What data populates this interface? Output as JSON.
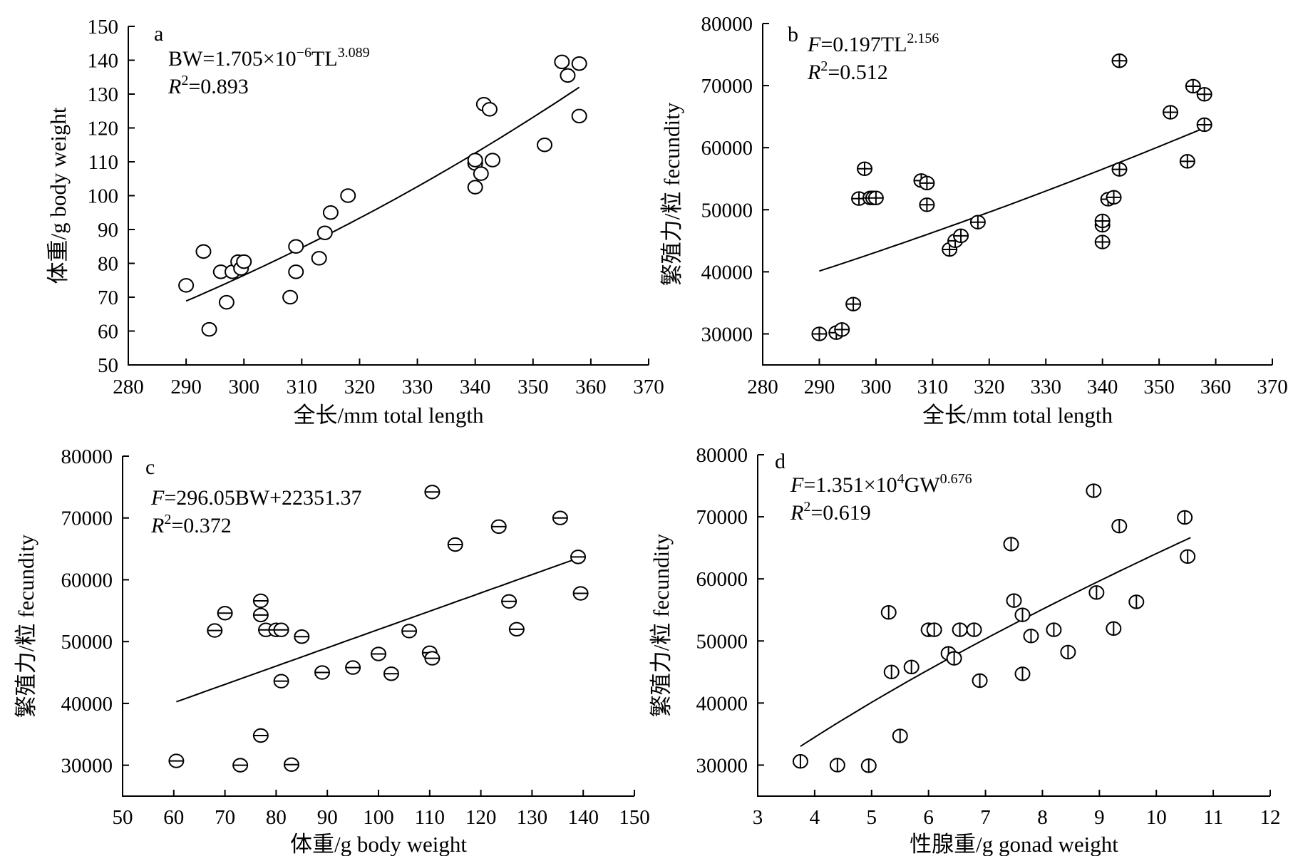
{
  "chart_data": [
    {
      "panel": "a",
      "type": "scatter",
      "xlabel": "全长/mm total length",
      "ylabel": "体重/g body weight",
      "xlim": [
        280,
        370
      ],
      "ylim": [
        50,
        150
      ],
      "xticks": [
        280,
        290,
        300,
        310,
        320,
        330,
        340,
        350,
        360,
        370
      ],
      "yticks": [
        50,
        60,
        70,
        80,
        90,
        100,
        110,
        120,
        130,
        140,
        150
      ],
      "marker": "circle",
      "equation": {
        "prefix": "BW=1.705×10",
        "exp1": "−6",
        "mid": "TL",
        "exp2": "3.089",
        "r2_sym": "R",
        "r2_sup": "2",
        "r2_val": "=0.893"
      },
      "fit": {
        "model": "power",
        "a": 1.705e-06,
        "b": 3.089,
        "x_from": 290,
        "x_to": 358
      },
      "points": [
        [
          290,
          73.5
        ],
        [
          293,
          83.5
        ],
        [
          294,
          60.5
        ],
        [
          296,
          77.5
        ],
        [
          297,
          68.5
        ],
        [
          298,
          77.5
        ],
        [
          299,
          80.5
        ],
        [
          299.5,
          78.5
        ],
        [
          300,
          80.5
        ],
        [
          308,
          70
        ],
        [
          309,
          85
        ],
        [
          309,
          77.5
        ],
        [
          313,
          81.5
        ],
        [
          314,
          89
        ],
        [
          315,
          95
        ],
        [
          318,
          100
        ],
        [
          340,
          102.5
        ],
        [
          340,
          109.5
        ],
        [
          340,
          110.5
        ],
        [
          341,
          106.5
        ],
        [
          341.5,
          127
        ],
        [
          342.5,
          125.5
        ],
        [
          343,
          110.5
        ],
        [
          352,
          115
        ],
        [
          355,
          139.5
        ],
        [
          356,
          135.5
        ],
        [
          358,
          139
        ],
        [
          358,
          123.5
        ]
      ]
    },
    {
      "panel": "b",
      "type": "scatter",
      "xlabel": "全长/mm total length",
      "ylabel": "繁殖力/粒 fecundity",
      "xlim": [
        280,
        370
      ],
      "ylim": [
        25000,
        80000
      ],
      "xticks": [
        280,
        290,
        300,
        310,
        320,
        330,
        340,
        350,
        360,
        370
      ],
      "yticks": [
        30000,
        40000,
        50000,
        60000,
        70000,
        80000
      ],
      "marker": "circle-plus",
      "equation": {
        "prefix_italic": "F",
        "prefix": "=0.197TL",
        "exp1": "2.156",
        "r2_sym": "R",
        "r2_sup": "2",
        "r2_val": "=0.512"
      },
      "fit": {
        "model": "power",
        "a": 0.197,
        "b": 2.156,
        "x_from": 290,
        "x_to": 358
      },
      "points": [
        [
          290,
          30000
        ],
        [
          293,
          30200
        ],
        [
          294,
          30700
        ],
        [
          296,
          34800
        ],
        [
          297,
          51800
        ],
        [
          298,
          56600
        ],
        [
          299,
          51900
        ],
        [
          299.5,
          51900
        ],
        [
          300,
          51900
        ],
        [
          308,
          54700
        ],
        [
          309,
          54300
        ],
        [
          309,
          50800
        ],
        [
          313,
          43600
        ],
        [
          314,
          45000
        ],
        [
          315,
          45800
        ],
        [
          318,
          48000
        ],
        [
          340,
          44800
        ],
        [
          340,
          47500
        ],
        [
          340,
          48200
        ],
        [
          341,
          51700
        ],
        [
          342,
          52000
        ],
        [
          343,
          74000
        ],
        [
          343,
          56500
        ],
        [
          352,
          65700
        ],
        [
          355,
          57800
        ],
        [
          356,
          69900
        ],
        [
          358,
          68600
        ],
        [
          358,
          63700
        ]
      ]
    },
    {
      "panel": "c",
      "type": "scatter",
      "xlabel": "体重/g body weight",
      "ylabel": "繁殖力/粒 fecundity",
      "xlim": [
        50,
        150
      ],
      "ylim": [
        25000,
        80000
      ],
      "xticks": [
        50,
        60,
        70,
        80,
        90,
        100,
        110,
        120,
        130,
        140,
        150
      ],
      "yticks": [
        30000,
        40000,
        50000,
        60000,
        70000,
        80000
      ],
      "marker": "circle-minus",
      "equation": {
        "prefix_italic": "F",
        "prefix": "=296.05BW+22351.37",
        "r2_sym": "R",
        "r2_sup": "2",
        "r2_val": "=0.372"
      },
      "fit": {
        "model": "linear",
        "a": 296.05,
        "b": 22351.37,
        "x_from": 60.5,
        "x_to": 139.5
      },
      "points": [
        [
          60.5,
          30700
        ],
        [
          68,
          51800
        ],
        [
          70,
          54600
        ],
        [
          73,
          30000
        ],
        [
          77,
          56600
        ],
        [
          77,
          34800
        ],
        [
          77,
          54300
        ],
        [
          78,
          51900
        ],
        [
          80,
          51900
        ],
        [
          81,
          51900
        ],
        [
          81,
          43600
        ],
        [
          83,
          30100
        ],
        [
          85,
          50800
        ],
        [
          89,
          45000
        ],
        [
          95,
          45800
        ],
        [
          100,
          48000
        ],
        [
          102.5,
          44800
        ],
        [
          106,
          51700
        ],
        [
          110,
          48200
        ],
        [
          110.5,
          74200
        ],
        [
          110.5,
          47300
        ],
        [
          115,
          65700
        ],
        [
          123.5,
          68600
        ],
        [
          125.5,
          56500
        ],
        [
          127,
          52000
        ],
        [
          135.5,
          70000
        ],
        [
          139,
          63700
        ],
        [
          139.5,
          57800
        ]
      ]
    },
    {
      "panel": "d",
      "type": "scatter",
      "xlabel": "性腺重/g gonad weight",
      "ylabel": "繁殖力/粒 fecundity",
      "xlim": [
        3,
        12
      ],
      "ylim": [
        25000,
        80000
      ],
      "xticks": [
        3,
        4,
        5,
        6,
        7,
        8,
        9,
        10,
        11,
        12
      ],
      "yticks": [
        30000,
        40000,
        50000,
        60000,
        70000,
        80000
      ],
      "marker": "circle-vertical",
      "equation": {
        "prefix_italic": "F",
        "prefix": "=1.351×10",
        "exp1": "4",
        "mid": "GW",
        "exp2": "0.676",
        "r2_sym": "R",
        "r2_sup": "2",
        "r2_val": "=0.619"
      },
      "fit": {
        "model": "power",
        "a": 13510,
        "b": 0.676,
        "x_from": 3.75,
        "x_to": 10.6
      },
      "points": [
        [
          3.75,
          30600
        ],
        [
          4.4,
          30000
        ],
        [
          4.95,
          29900
        ],
        [
          5.3,
          54600
        ],
        [
          5.35,
          45000
        ],
        [
          5.5,
          34700
        ],
        [
          5.7,
          45800
        ],
        [
          6.0,
          51800
        ],
        [
          6.1,
          51800
        ],
        [
          6.35,
          48000
        ],
        [
          6.45,
          47200
        ],
        [
          6.55,
          51800
        ],
        [
          6.8,
          51800
        ],
        [
          6.9,
          43600
        ],
        [
          7.45,
          65600
        ],
        [
          7.5,
          56500
        ],
        [
          7.65,
          54200
        ],
        [
          7.65,
          44700
        ],
        [
          7.8,
          50800
        ],
        [
          8.2,
          51800
        ],
        [
          8.45,
          48200
        ],
        [
          8.9,
          74200
        ],
        [
          8.95,
          57800
        ],
        [
          9.25,
          52000
        ],
        [
          9.35,
          68500
        ],
        [
          9.65,
          56300
        ],
        [
          10.5,
          69900
        ],
        [
          10.55,
          63600
        ]
      ]
    }
  ]
}
